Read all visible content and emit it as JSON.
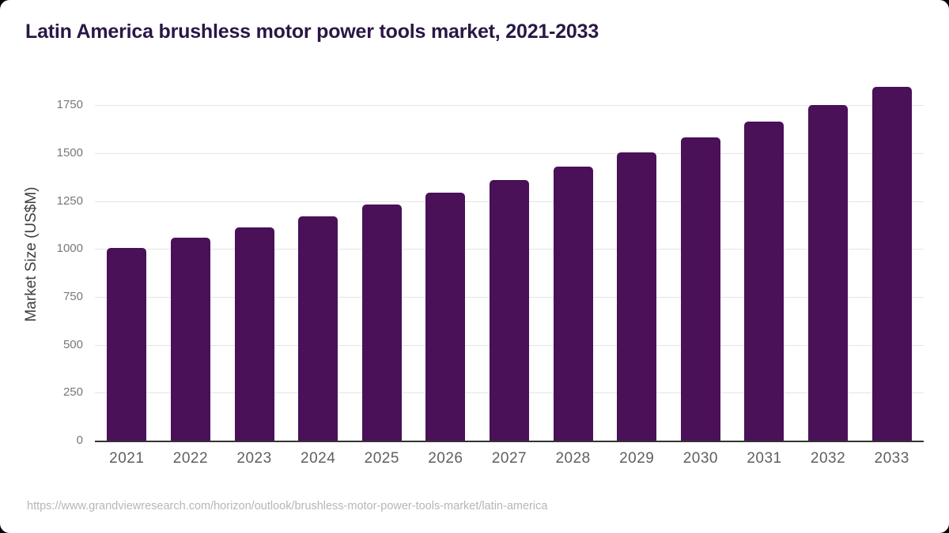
{
  "header": {
    "title": "Latin America brushless motor power tools market, 2021-2033"
  },
  "chart_data": {
    "type": "bar",
    "title": "Latin America brushless motor power tools market, 2021-2033",
    "categories": [
      "2021",
      "2022",
      "2023",
      "2024",
      "2025",
      "2026",
      "2027",
      "2028",
      "2029",
      "2030",
      "2031",
      "2032",
      "2033"
    ],
    "values": [
      1005,
      1057,
      1112,
      1170,
      1230,
      1294,
      1360,
      1431,
      1505,
      1583,
      1665,
      1751,
      1844
    ],
    "xlabel": "",
    "ylabel": "Market Size (US$M)",
    "yticks": [
      0,
      250,
      500,
      750,
      1000,
      1250,
      1500,
      1750
    ],
    "ylim": [
      0,
      1907
    ],
    "grid": true,
    "legend": false,
    "bar_color": "#4a1058"
  },
  "colors": {
    "title": "#2a1745",
    "gridline": "#e4e4e4",
    "axis_line": "#333333",
    "y_tick": "#787878",
    "x_tick": "#5f5f5f",
    "y_axis_title": "#3f3f3f",
    "footer": "#b6b6b6",
    "card_background": "#ffffff",
    "page_background": "#000000"
  },
  "footer": {
    "source_url": "https://www.grandviewresearch.com/horizon/outlook/brushless-motor-power-tools-market/latin-america"
  }
}
